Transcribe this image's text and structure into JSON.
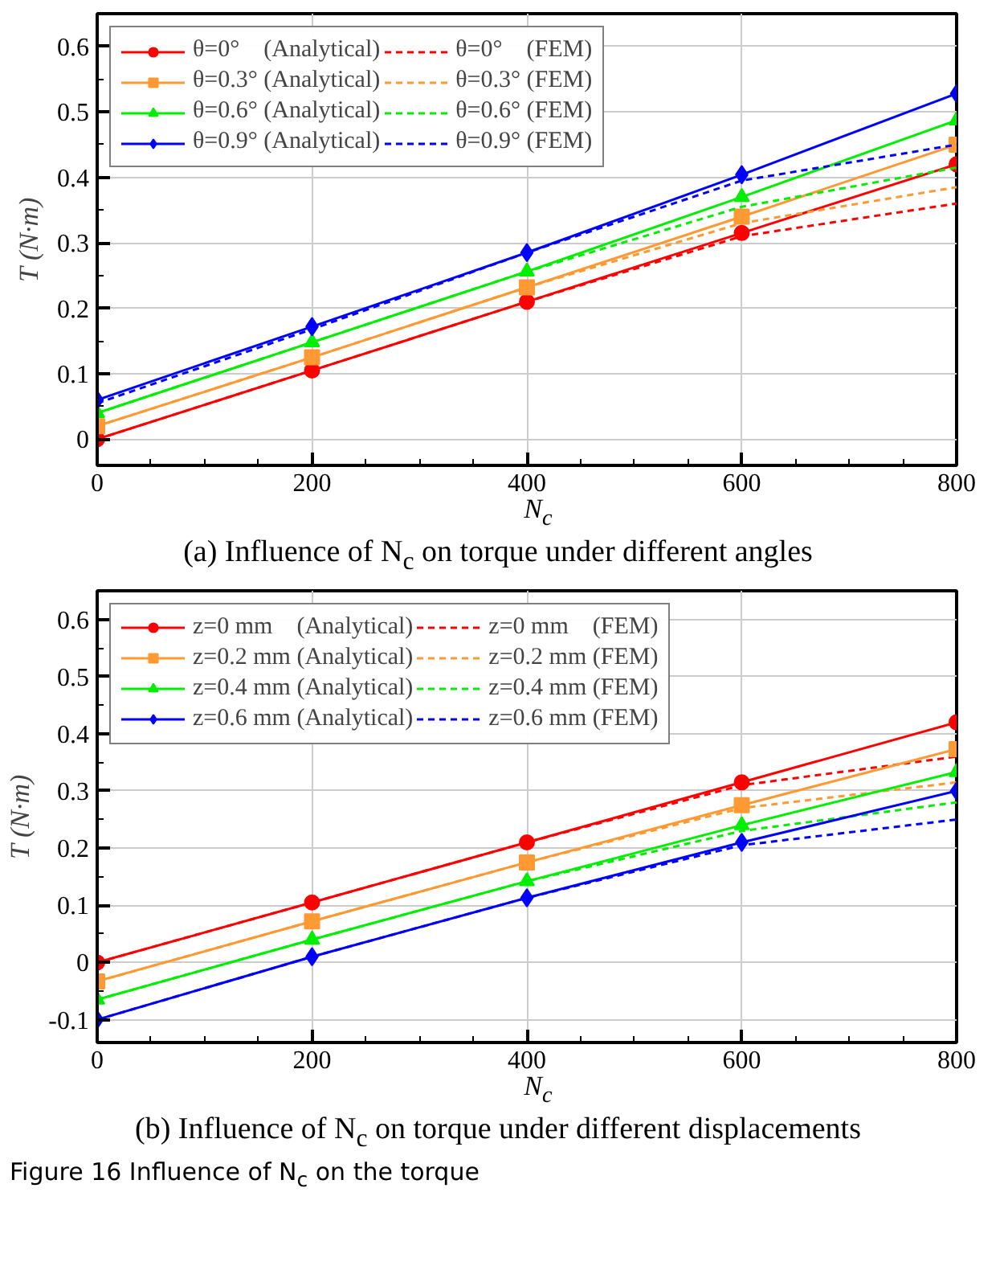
{
  "chart_data": [
    {
      "type": "line",
      "title": "(a) Influence of N$_{c}$ on torque under different angles",
      "xlabel": "N$_{c}$",
      "ylabel": "T (N·m)",
      "x": [
        0,
        200,
        400,
        600,
        800
      ],
      "xlim": [
        0,
        800
      ],
      "xticks": [
        0,
        200,
        400,
        600,
        800
      ],
      "ylim": [
        -0.04,
        0.65
      ],
      "yticks": [
        0,
        0.1,
        0.2,
        0.3,
        0.4,
        0.5,
        0.6
      ],
      "grid": true,
      "legend": "top left",
      "series": [
        {
          "name": "θ=0°    (Analytical)",
          "color": "#ff0000",
          "marker": "circle",
          "line_style": "solid",
          "values": [
            0,
            0.105,
            0.21,
            0.315,
            0.42
          ]
        },
        {
          "name": "θ=0°    (FEM)",
          "color": "#ff0000",
          "marker": "none",
          "line_style": "dashed",
          "values": [
            0,
            0.105,
            0.21,
            0.31,
            0.36
          ]
        },
        {
          "name": "θ=0.3° (Analytical)",
          "color": "#ff9933",
          "marker": "square",
          "line_style": "solid",
          "values": [
            0.02,
            0.125,
            0.232,
            0.34,
            0.45
          ]
        },
        {
          "name": "θ=0.3° (FEM)",
          "color": "#ff9933",
          "marker": "none",
          "line_style": "dashed",
          "values": [
            0.02,
            0.125,
            0.232,
            0.33,
            0.385
          ]
        },
        {
          "name": "θ=0.6° (Analytical)",
          "color": "#00ee00",
          "marker": "triangle",
          "line_style": "solid",
          "values": [
            0.04,
            0.148,
            0.256,
            0.37,
            0.487
          ]
        },
        {
          "name": "θ=0.6° (FEM)",
          "color": "#00ee00",
          "marker": "none",
          "line_style": "dashed",
          "values": [
            0.04,
            0.148,
            0.256,
            0.355,
            0.415
          ]
        },
        {
          "name": "θ=0.9° (Analytical)",
          "color": "#0000ff",
          "marker": "diamond",
          "line_style": "solid",
          "values": [
            0.06,
            0.172,
            0.285,
            0.404,
            0.528
          ]
        },
        {
          "name": "θ=0.9° (FEM)",
          "color": "#0000ff",
          "marker": "none",
          "line_style": "dashed",
          "values": [
            0.055,
            0.168,
            0.285,
            0.395,
            0.45
          ]
        }
      ]
    },
    {
      "type": "line",
      "title": "(b) Influence of N$_{c}$ on torque under different displacements",
      "xlabel": "N$_{c}$",
      "ylabel": "T (N·m)",
      "annotations": [
        "Figure 16 Influence of N$_{c}$ on the torque"
      ],
      "x": [
        0,
        200,
        400,
        600,
        800
      ],
      "xlim": [
        0,
        800
      ],
      "xticks": [
        0,
        200,
        400,
        600,
        800
      ],
      "ylim": [
        -0.14,
        0.65
      ],
      "yticks": [
        -0.1,
        0,
        0.1,
        0.2,
        0.3,
        0.4,
        0.5,
        0.6
      ],
      "grid": true,
      "legend": "top left",
      "series": [
        {
          "name": "z=0 mm    (Analytical)",
          "color": "#ff0000",
          "marker": "circle",
          "line_style": "solid",
          "values": [
            0,
            0.105,
            0.21,
            0.315,
            0.42
          ]
        },
        {
          "name": "z=0 mm    (FEM)",
          "color": "#ff0000",
          "marker": "none",
          "line_style": "dashed",
          "values": [
            0,
            0.105,
            0.21,
            0.31,
            0.36
          ]
        },
        {
          "name": "z=0.2 mm (Analytical)",
          "color": "#ff9933",
          "marker": "square",
          "line_style": "solid",
          "values": [
            -0.033,
            0.072,
            0.175,
            0.275,
            0.373
          ]
        },
        {
          "name": "z=0.2 mm (FEM)",
          "color": "#ff9933",
          "marker": "none",
          "line_style": "dashed",
          "values": [
            -0.033,
            0.072,
            0.175,
            0.27,
            0.315
          ]
        },
        {
          "name": "z=0.4 mm (Analytical)",
          "color": "#00ee00",
          "marker": "triangle",
          "line_style": "solid",
          "values": [
            -0.065,
            0.04,
            0.142,
            0.24,
            0.333
          ]
        },
        {
          "name": "z=0.4 mm (FEM)",
          "color": "#00ee00",
          "marker": "none",
          "line_style": "dashed",
          "values": [
            -0.065,
            0.04,
            0.142,
            0.23,
            0.28
          ]
        },
        {
          "name": "z=0.6 mm (Analytical)",
          "color": "#0000ff",
          "marker": "diamond",
          "line_style": "solid",
          "values": [
            -0.1,
            0.01,
            0.113,
            0.21,
            0.3
          ]
        },
        {
          "name": "z=0.6 mm (FEM)",
          "color": "#0000ff",
          "marker": "none",
          "line_style": "dashed",
          "values": [
            -0.1,
            0.01,
            0.113,
            0.205,
            0.25
          ]
        }
      ]
    }
  ]
}
